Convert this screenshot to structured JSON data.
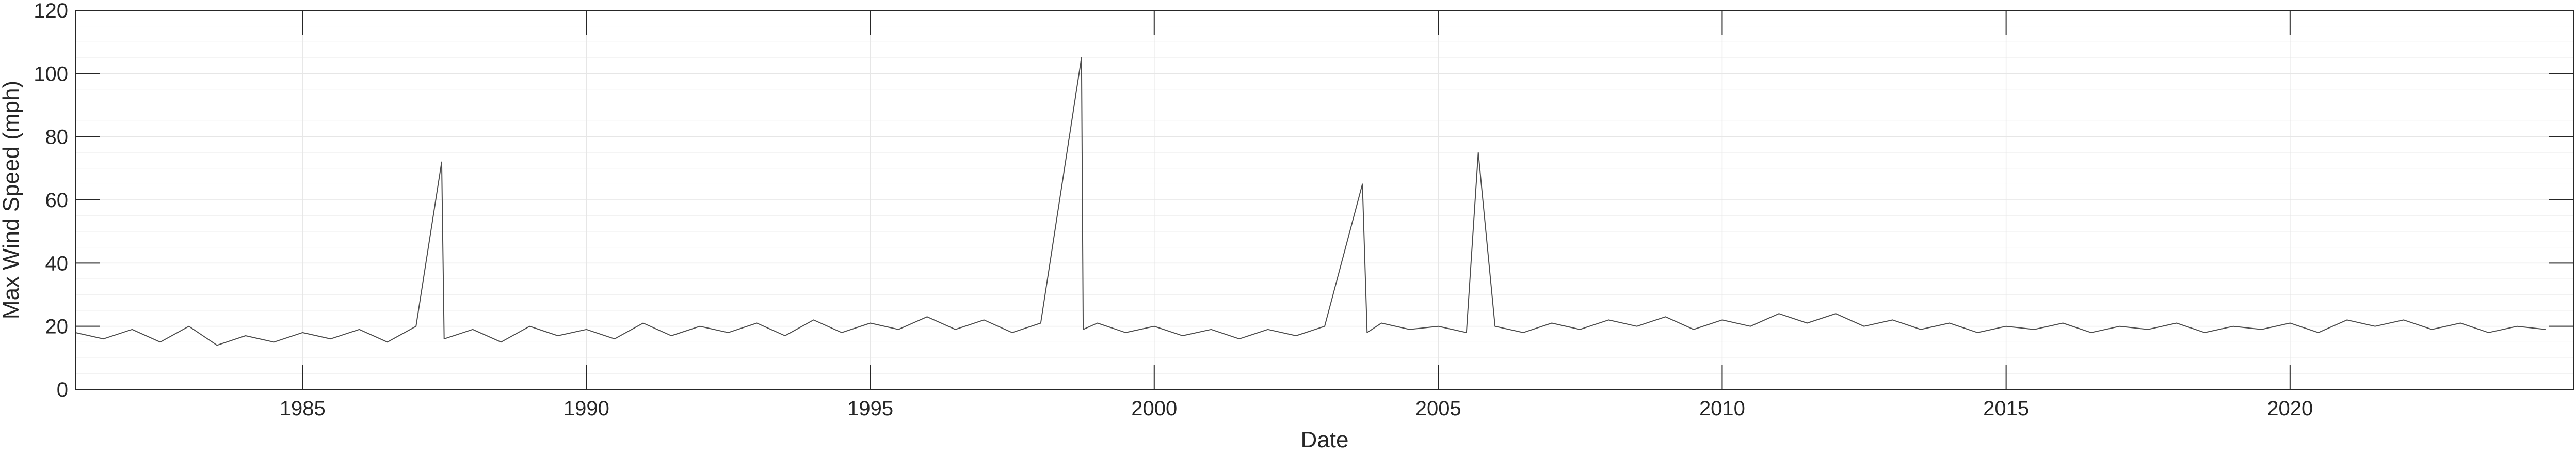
{
  "chart_data": {
    "type": "line",
    "title": "",
    "xlabel": "Date",
    "ylabel": "Max Wind Speed (mph)",
    "xlim": [
      "1981-01-01",
      "2024-12-31"
    ],
    "ylim": [
      0,
      120
    ],
    "x_ticks": [
      "1985",
      "1990",
      "1995",
      "2000",
      "2005",
      "2010",
      "2015",
      "2020"
    ],
    "y_ticks": [
      "0",
      "20",
      "40",
      "60",
      "80",
      "100",
      "120"
    ],
    "grid": true,
    "line_color": "#4d4d4d",
    "series": [
      {
        "values_description_note": null,
        "x": [
          "1981-01-01",
          "1981-07-01",
          "1982-01-01",
          "1982-07-01",
          "1983-01-01",
          "1983-07-01",
          "1984-01-01",
          "1984-07-01",
          "1985-01-01",
          "1985-07-01",
          "1986-01-01",
          "1986-07-01",
          "1987-01-01",
          "1987-06-15",
          "1987-07-01",
          "1988-01-01",
          "1988-07-01",
          "1989-01-01",
          "1989-07-01",
          "1990-01-01",
          "1990-07-01",
          "1991-01-01",
          "1991-07-01",
          "1992-01-01",
          "1992-07-01",
          "1993-01-01",
          "1993-07-01",
          "1994-01-01",
          "1994-07-01",
          "1995-01-01",
          "1995-07-01",
          "1996-01-01",
          "1996-07-01",
          "1997-01-01",
          "1997-07-01",
          "1998-01-01",
          "1998-09-20",
          "1998-10-01",
          "1999-01-01",
          "1999-07-01",
          "2000-01-01",
          "2000-07-01",
          "2001-01-01",
          "2001-07-01",
          "2002-01-01",
          "2002-07-01",
          "2003-01-01",
          "2003-09-01",
          "2003-10-01",
          "2004-01-01",
          "2004-07-01",
          "2005-01-01",
          "2005-07-01",
          "2005-09-15",
          "2006-01-01",
          "2006-07-01",
          "2007-01-01",
          "2007-07-01",
          "2008-01-01",
          "2008-07-01",
          "2009-01-01",
          "2009-07-01",
          "2010-01-01",
          "2010-07-01",
          "2011-01-01",
          "2011-07-01",
          "2012-01-01",
          "2012-07-01",
          "2013-01-01",
          "2013-07-01",
          "2014-01-01",
          "2014-07-01",
          "2015-01-01",
          "2015-07-01",
          "2016-01-01",
          "2016-07-01",
          "2017-01-01",
          "2017-07-01",
          "2018-01-01",
          "2018-07-01",
          "2019-01-01",
          "2019-07-01",
          "2020-01-01",
          "2020-07-01",
          "2021-01-01",
          "2021-07-01",
          "2022-01-01",
          "2022-07-01",
          "2023-01-01",
          "2023-07-01",
          "2024-01-01",
          "2024-07-01"
        ],
        "y": [
          18,
          16,
          19,
          15,
          20,
          14,
          17,
          15,
          18,
          16,
          19,
          15,
          20,
          72,
          16,
          19,
          15,
          20,
          17,
          19,
          16,
          21,
          17,
          20,
          18,
          21,
          17,
          22,
          18,
          21,
          19,
          23,
          19,
          22,
          18,
          21,
          105,
          19,
          21,
          18,
          20,
          17,
          19,
          16,
          19,
          17,
          20,
          65,
          18,
          21,
          19,
          20,
          18,
          75,
          20,
          18,
          21,
          19,
          22,
          20,
          23,
          19,
          22,
          20,
          24,
          21,
          24,
          20,
          22,
          19,
          21,
          18,
          20,
          19,
          21,
          18,
          20,
          19,
          21,
          18,
          20,
          19,
          21,
          18,
          22,
          20,
          22,
          19,
          21,
          18,
          20,
          19
        ]
      }
    ]
  }
}
